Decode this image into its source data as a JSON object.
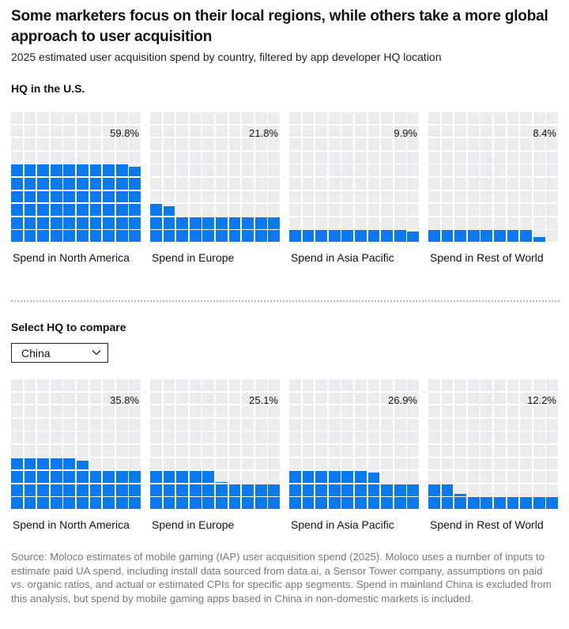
{
  "header": {
    "title": "Some marketers focus on their local regions, while others take a more global approach to user acquisition",
    "subtitle": "2025 estimated user acquisition spend by country, filtered by app developer HQ location"
  },
  "colors": {
    "fill": "#0b78f0",
    "empty": "#ebebed"
  },
  "section1": {
    "label": "HQ in the U.S."
  },
  "section2": {
    "label": "Select HQ to compare",
    "select": {
      "value": "China",
      "icon": "chevron-down-icon"
    }
  },
  "source": "Source: Moloco estimates of mobile gaming (IAP) user acquisition spend (2025). Moloco uses a number of inputs to estimate paid UA spend, including install data sourced from data.ai, a Sensor Tower company, assumptions on paid vs. organic ratios, and actual or estimated CPIs for specific app segments. Spend in mainland China is excluded from this analysis, but spend by mobile gaming apps based in China in non-domestic markets is included.",
  "chart_data": [
    {
      "type": "waffle",
      "title": "HQ in the U.S.",
      "grid": [
        10,
        10
      ],
      "unit": "percent of spend",
      "categories": [
        "Spend in North America",
        "Spend in Europe",
        "Spend in Asia Pacific",
        "Spend in Rest of World"
      ],
      "values": [
        59.8,
        21.8,
        9.9,
        8.4
      ],
      "labels": [
        "59.8%",
        "21.8%",
        "9.9%",
        "8.4%"
      ]
    },
    {
      "type": "waffle",
      "title": "HQ in China",
      "grid": [
        10,
        10
      ],
      "unit": "percent of spend",
      "categories": [
        "Spend in North America",
        "Spend in Europe",
        "Spend in Asia Pacific",
        "Spend in Rest of World"
      ],
      "values": [
        35.8,
        25.1,
        26.9,
        12.2
      ],
      "labels": [
        "35.8%",
        "25.1%",
        "26.9%",
        "12.2%"
      ]
    }
  ]
}
